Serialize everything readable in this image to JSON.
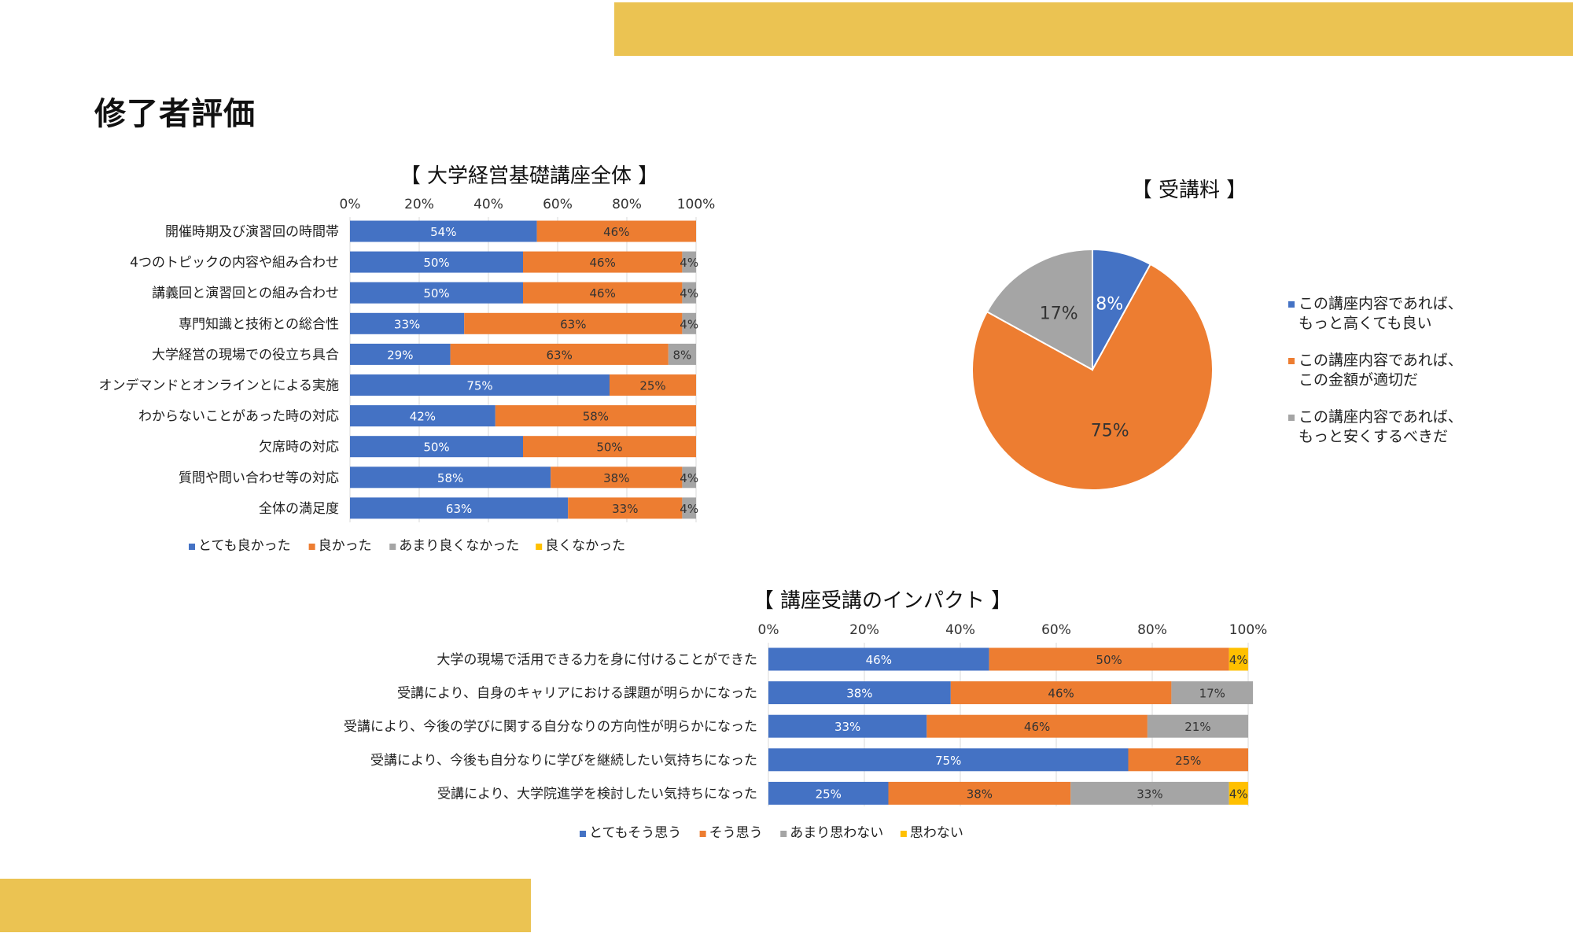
{
  "page": {
    "title": "修了者評価"
  },
  "colors": {
    "band": "#EBC352",
    "blue": "#4472C4",
    "orange": "#ED7D31",
    "gray": "#A5A5A5",
    "yellow": "#FFC000"
  },
  "chart_data": [
    {
      "type": "bar",
      "orientation": "horizontal-stacked-100",
      "title": "【 大学経営基礎講座全体 】",
      "xlim": [
        0,
        100
      ],
      "ticks": [
        "0%",
        "20%",
        "40%",
        "60%",
        "80%",
        "100%"
      ],
      "legend_position": "bottom",
      "categories": [
        "開催時期及び演習回の時間帯",
        "4つのトピックの内容や組み合わせ",
        "講義回と演習回との組み合わせ",
        "専門知識と技術との総合性",
        "大学経営の現場での役立ち具合",
        "オンデマンドとオンラインとによる実施",
        "わからないことがあった時の対応",
        "欠席時の対応",
        "質問や問い合わせ等の対応",
        "全体の満足度"
      ],
      "series": [
        {
          "name": "とても良かった",
          "color": "#4472C4",
          "values": [
            54,
            50,
            50,
            33,
            29,
            75,
            42,
            50,
            58,
            63
          ]
        },
        {
          "name": "良かった",
          "color": "#ED7D31",
          "values": [
            46,
            46,
            46,
            63,
            63,
            25,
            58,
            50,
            38,
            33
          ]
        },
        {
          "name": "あまり良くなかった",
          "color": "#A5A5A5",
          "values": [
            0,
            4,
            4,
            4,
            8,
            0,
            0,
            0,
            4,
            4
          ]
        },
        {
          "name": "良くなかった",
          "color": "#FFC000",
          "values": [
            0,
            0,
            0,
            0,
            0,
            0,
            0,
            0,
            0,
            0
          ]
        }
      ]
    },
    {
      "type": "pie",
      "title": "【 受講料 】",
      "legend_position": "right",
      "slices": [
        {
          "name": "この講座内容であれば、もっと高くても良い",
          "lines": [
            "この講座内容であれば、",
            "もっと高くても良い"
          ],
          "value": 8,
          "label": "8%",
          "color": "#4472C4"
        },
        {
          "name": "この講座内容であれば、この金額が適切だ",
          "lines": [
            "この講座内容であれば、",
            "この金額が適切だ"
          ],
          "value": 75,
          "label": "75%",
          "color": "#ED7D31"
        },
        {
          "name": "この講座内容であれば、もっと安くするべきだ",
          "lines": [
            "この講座内容であれば、",
            "もっと安くするべきだ"
          ],
          "value": 17,
          "label": "17%",
          "color": "#A5A5A5"
        }
      ]
    },
    {
      "type": "bar",
      "orientation": "horizontal-stacked-100",
      "title": "【 講座受講のインパクト 】",
      "xlim": [
        0,
        100
      ],
      "ticks": [
        "0%",
        "20%",
        "40%",
        "60%",
        "80%",
        "100%"
      ],
      "legend_position": "bottom",
      "categories": [
        "大学の現場で活用できる力を身に付けることができた",
        "受講により、自身のキャリアにおける課題が明らかになった",
        "受講により、今後の学びに関する自分なりの方向性が明らかになった",
        "受講により、今後も自分なりに学びを継続したい気持ちになった",
        "受講により、大学院進学を検討したい気持ちになった"
      ],
      "series": [
        {
          "name": "とてもそう思う",
          "color": "#4472C4",
          "values": [
            46,
            38,
            33,
            75,
            25
          ]
        },
        {
          "name": "そう思う",
          "color": "#ED7D31",
          "values": [
            50,
            46,
            46,
            25,
            38
          ]
        },
        {
          "name": "あまり思わない",
          "color": "#A5A5A5",
          "values": [
            0,
            17,
            21,
            0,
            33
          ]
        },
        {
          "name": "思わない",
          "color": "#FFC000",
          "values": [
            4,
            0,
            0,
            0,
            4
          ]
        }
      ]
    }
  ]
}
